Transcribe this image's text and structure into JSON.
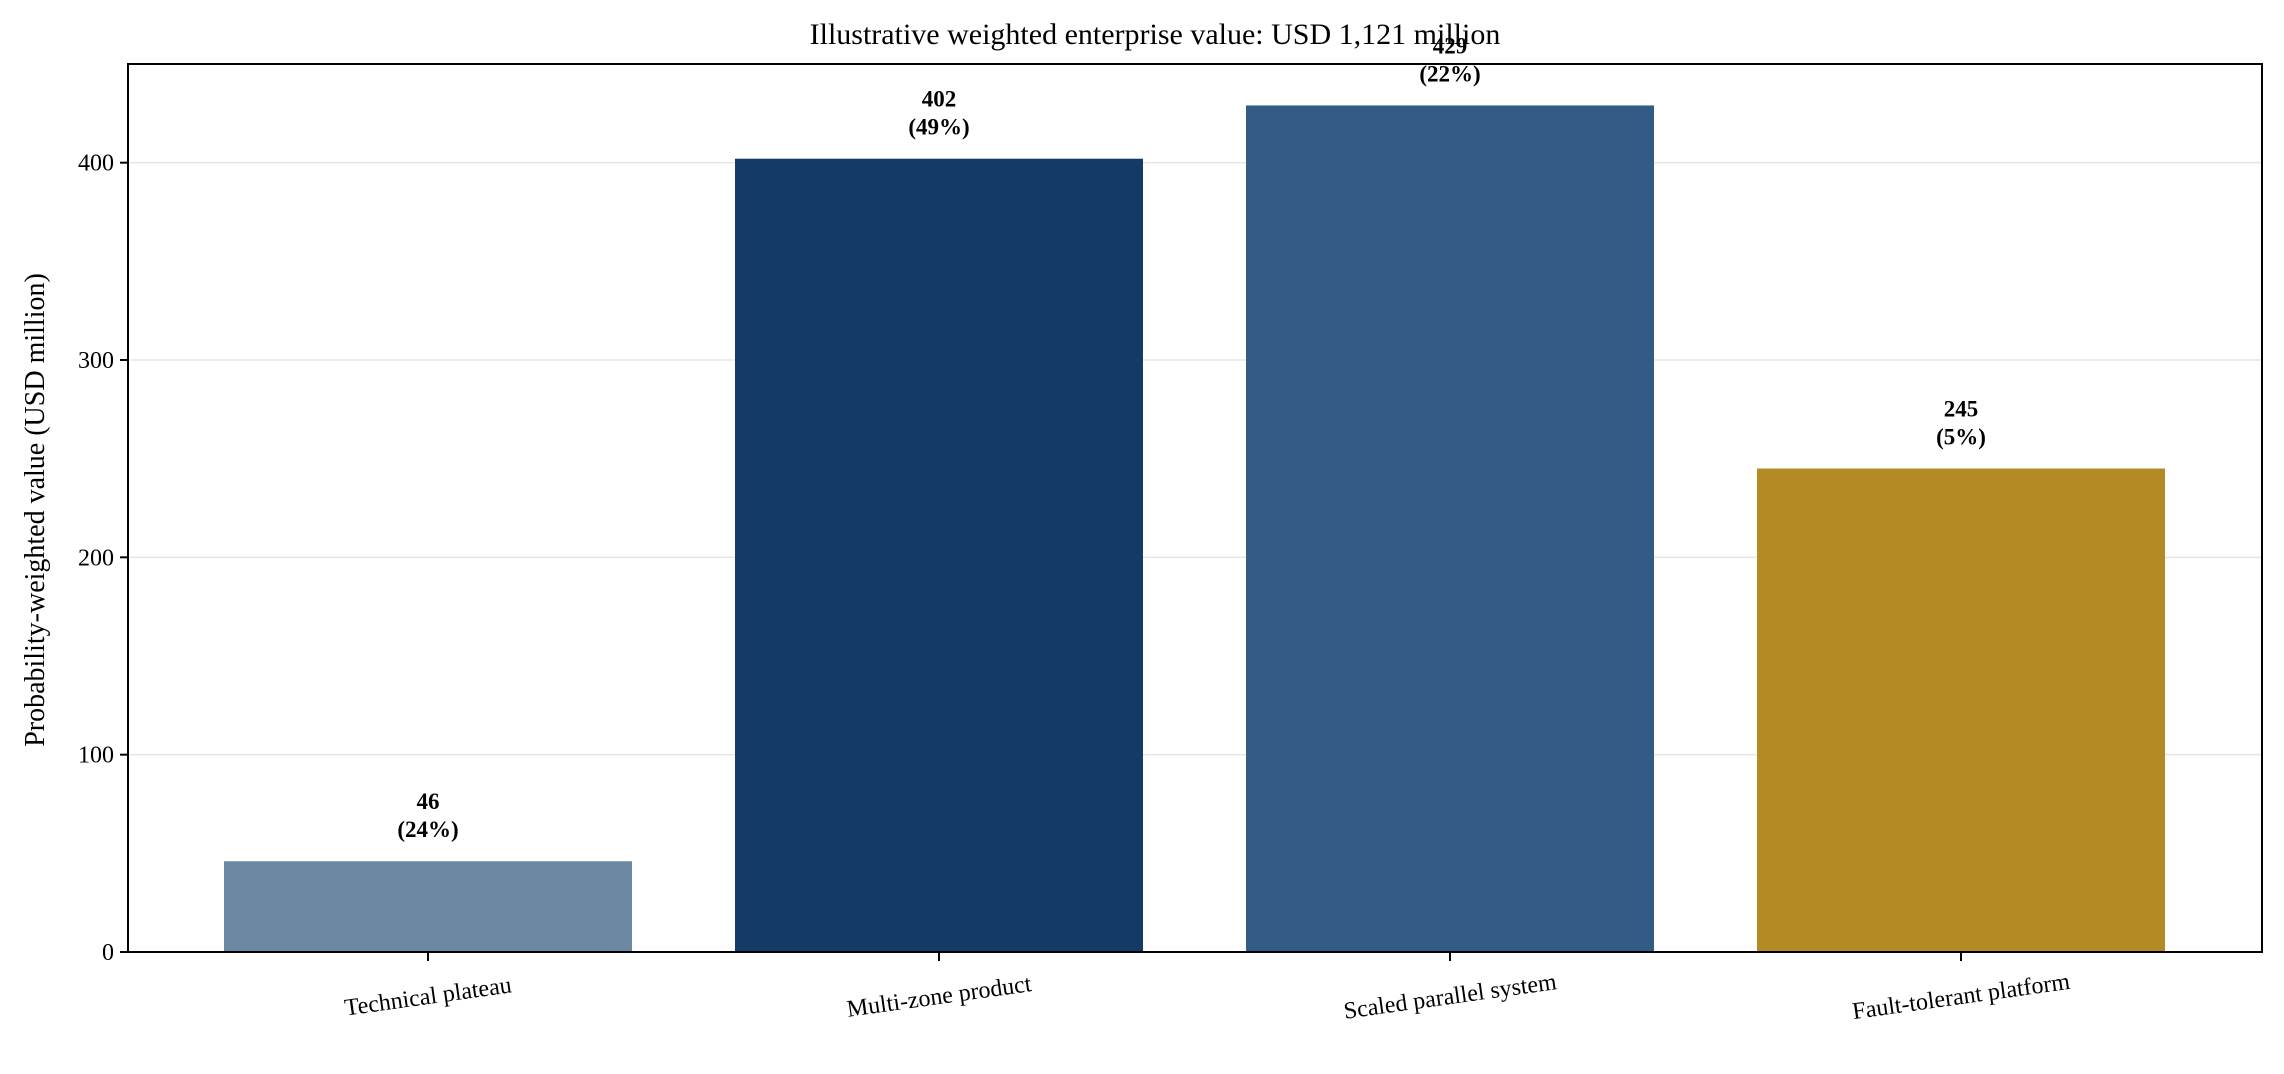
{
  "chart_data": {
    "type": "bar",
    "title": "Illustrative weighted enterprise value: USD 1,121 million",
    "xlabel": "",
    "ylabel": "Probability-weighted value (USD million)",
    "ylim": [
      0,
      450
    ],
    "yticks": [
      0,
      100,
      200,
      300,
      400
    ],
    "grid": "horizontal",
    "categories": [
      "Technical plateau",
      "Multi-zone product",
      "Scaled parallel system",
      "Fault-tolerant platform"
    ],
    "values": [
      46,
      402,
      429,
      245
    ],
    "probability_labels": [
      "(24%)",
      "(49%)",
      "(22%)",
      "(5%)"
    ],
    "value_labels": [
      "46",
      "402",
      "429",
      "245"
    ],
    "colors": [
      "#6b89a3",
      "#143a68",
      "#325c84",
      "#b38a23"
    ]
  }
}
